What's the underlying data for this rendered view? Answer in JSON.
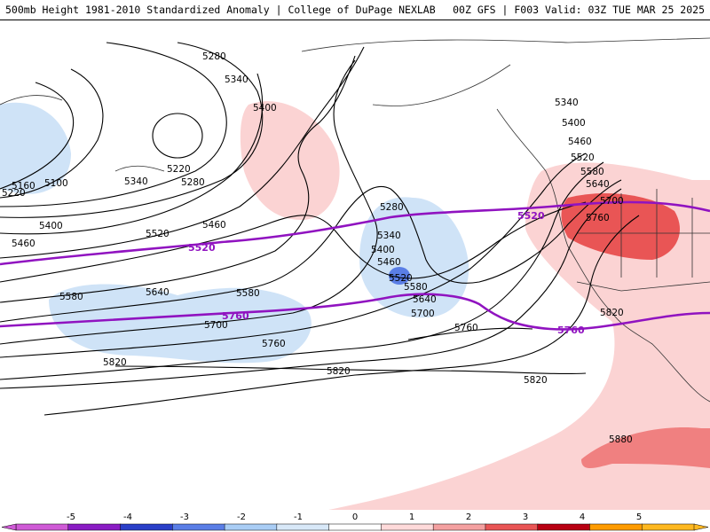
{
  "header": {
    "title_left": "500mb Height 1981-2010 Standardized Anomaly | College of DuPage NEXLAB",
    "title_right": "00Z GFS | F003 Valid: 03Z TUE MAR 25 2025"
  },
  "map": {
    "contour_labels": [
      "5280",
      "5340",
      "5400",
      "5220",
      "5280",
      "5340",
      "5160",
      "5100",
      "5220",
      "5460",
      "5400",
      "5520",
      "5460",
      "5580",
      "5640",
      "5580",
      "5700",
      "5760",
      "5820",
      "5820",
      "5820",
      "5280",
      "5340",
      "5400",
      "5460",
      "5520",
      "5580",
      "5640",
      "5700",
      "5760",
      "5340",
      "5400",
      "5460",
      "5520",
      "5580",
      "5640",
      "5700",
      "5760",
      "5820",
      "5880"
    ],
    "highlight_labels": [
      "5520",
      "5520",
      "5760",
      "5760"
    ]
  },
  "legend": {
    "ticks": [
      "-5",
      "-4",
      "-3",
      "-2",
      "-1",
      "0",
      "1",
      "2",
      "3",
      "4",
      "5"
    ],
    "colors": [
      "#cf5ad6",
      "#8a1cc4",
      "#2a3fc8",
      "#5a7ee6",
      "#a9cdf5",
      "#d8e8f8",
      "#ffffff",
      "#ffdada",
      "#f4a0a0",
      "#e95555",
      "#b80012",
      "#ff9b00",
      "#ffb820"
    ]
  }
}
